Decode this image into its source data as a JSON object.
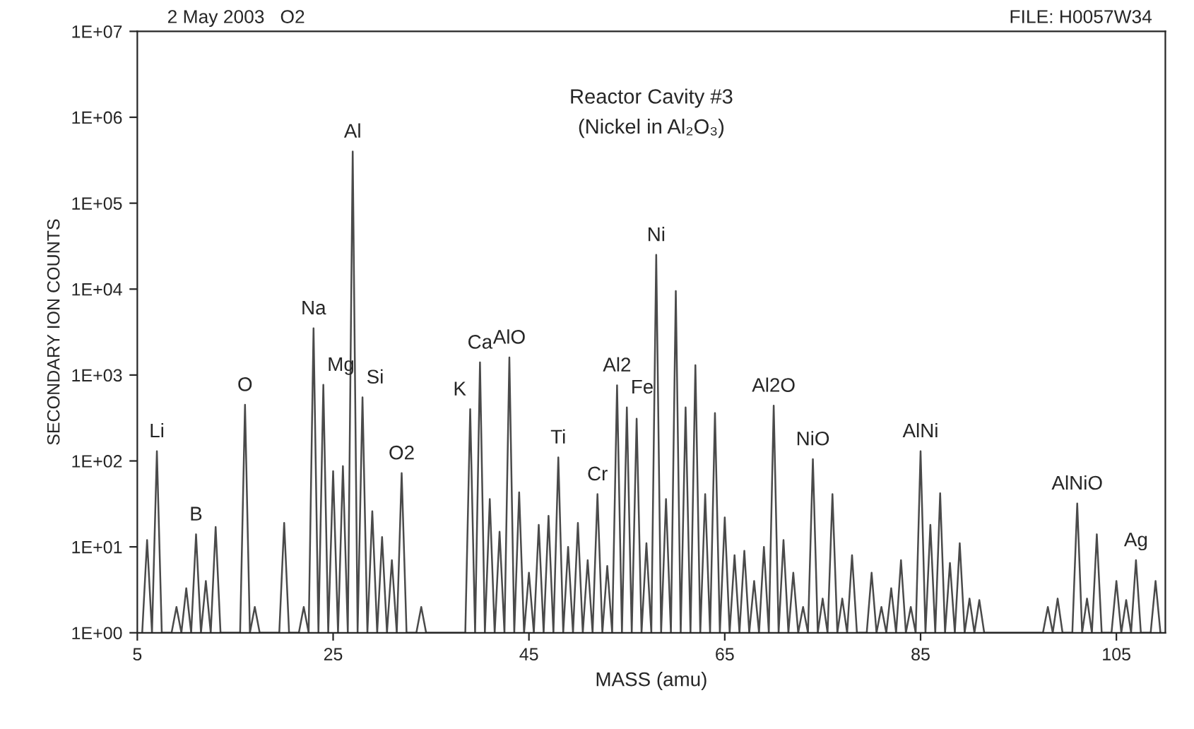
{
  "chart_data": {
    "type": "line",
    "title": "Reactor Cavity #3",
    "subtitle": "(Nickel in Al₂O₃)",
    "xlabel": "MASS (amu)",
    "ylabel": "SECONDARY ION COUNTS",
    "log": "y",
    "grid": false,
    "legend": false,
    "marker": "none",
    "line_style": "solid",
    "xlim": [
      5,
      110
    ],
    "xticks": [
      5,
      25,
      45,
      65,
      85,
      105
    ],
    "ylim": [
      1,
      10000000
    ],
    "yticks": [
      {
        "value": 1,
        "label": "1E+00"
      },
      {
        "value": 10,
        "label": "1E+01"
      },
      {
        "value": 100,
        "label": "1E+02"
      },
      {
        "value": 1000,
        "label": "1E+03"
      },
      {
        "value": 10000,
        "label": "1E+04"
      },
      {
        "value": 100000,
        "label": "1E+05"
      },
      {
        "value": 1000000,
        "label": "1E+06"
      },
      {
        "value": 10000000,
        "label": "1E+07"
      }
    ],
    "series": [
      {
        "color": "#4a4a4a",
        "x": [
          5.5,
          6,
          6.5,
          7,
          7.5,
          8.5,
          9,
          9.5,
          10,
          10.5,
          11,
          11.5,
          12,
          12.5,
          13,
          13.5,
          15.5,
          16,
          16.5,
          17,
          17.5,
          19.5,
          20,
          20.5,
          21.5,
          22,
          22.5,
          23,
          23.5,
          24,
          24.5,
          25,
          25.5,
          26,
          26.5,
          27,
          27.5,
          28,
          28.5,
          29,
          29.5,
          30,
          30.5,
          31,
          31.5,
          32,
          32.5,
          33.5,
          34,
          34.5,
          38.5,
          39,
          39.5,
          40,
          40.5,
          41,
          41.5,
          42,
          42.5,
          43,
          43.5,
          44,
          44.5,
          45,
          45.5,
          46,
          46.5,
          47,
          47.5,
          48,
          48.5,
          49,
          49.5,
          50,
          50.5,
          51,
          51.5,
          52,
          52.5,
          53,
          53.5,
          54,
          54.5,
          55,
          55.5,
          56,
          56.5,
          57,
          57.5,
          58,
          58.5,
          59,
          59.5,
          60,
          60.5,
          61,
          61.5,
          62,
          62.5,
          63,
          63.5,
          64,
          64.5,
          65,
          65.5,
          66,
          66.5,
          67,
          67.5,
          68,
          68.5,
          69,
          69.5,
          70,
          70.5,
          71,
          71.5,
          72,
          72.5,
          73,
          73.5,
          74,
          74.5,
          75,
          75.5,
          76,
          76.5,
          77,
          77.5,
          78,
          78.5,
          79.5,
          80,
          80.5,
          81,
          81.5,
          82,
          82.5,
          83,
          83.5,
          84,
          84.5,
          85,
          85.5,
          86,
          86.5,
          87,
          87.5,
          88,
          88.5,
          89,
          89.5,
          90,
          90.5,
          91,
          91.5,
          97.5,
          98,
          98.5,
          99,
          99.5,
          100.5,
          101,
          101.5,
          102,
          102.5,
          103,
          103.5,
          104.5,
          105,
          105.5,
          106,
          106.5,
          107,
          107.5,
          108.5,
          109,
          109.5
        ],
        "values": [
          1,
          12,
          1,
          130,
          1,
          1,
          2,
          1,
          3.3,
          1,
          14,
          1,
          4,
          1,
          17,
          1,
          1,
          450,
          1,
          2,
          1,
          1,
          19,
          1,
          1,
          2,
          1,
          3500,
          1,
          770,
          1,
          76,
          1,
          87,
          1,
          400000,
          1,
          550,
          1,
          26,
          1,
          13,
          1,
          7,
          1,
          72,
          1,
          1,
          2,
          1,
          1,
          400,
          1,
          1400,
          1,
          36,
          1,
          15,
          1,
          1600,
          1,
          43,
          1,
          5,
          1,
          18,
          1,
          23,
          1,
          110,
          1,
          10,
          1,
          19,
          1,
          7,
          1,
          41,
          1,
          6,
          1,
          760,
          1,
          420,
          1,
          310,
          1,
          11,
          1,
          25000,
          1,
          36,
          1,
          9500,
          1,
          420,
          1,
          1300,
          1,
          41,
          1,
          360,
          1,
          22,
          1,
          8,
          1,
          9,
          1,
          4,
          1,
          10,
          1,
          440,
          1,
          12,
          1,
          5,
          1,
          2,
          1,
          105,
          1,
          2.5,
          1,
          41,
          1,
          2.5,
          1,
          8,
          1,
          1,
          5,
          1,
          2,
          1,
          3.3,
          1,
          7,
          1,
          2,
          1,
          130,
          1,
          18,
          1,
          42,
          1,
          6.5,
          1,
          11,
          1,
          2.5,
          1,
          2.4,
          1,
          1,
          2,
          1,
          2.5,
          1,
          1,
          32,
          1,
          2.5,
          1,
          14,
          1,
          1,
          4,
          1,
          2.4,
          1,
          7,
          1,
          1,
          4,
          1
        ]
      }
    ],
    "annotations": [
      "2 May 2003   O2",
      "FILE: H0057W34",
      {
        "text": "Li",
        "x": 7,
        "y": 130
      },
      {
        "text": "B",
        "x": 11,
        "y": 14
      },
      {
        "text": "O",
        "x": 16,
        "y": 450
      },
      {
        "text": "Na",
        "x": 23,
        "y": 3500
      },
      {
        "text": "Mg",
        "x": 24,
        "y": 770
      },
      {
        "text": "Al",
        "x": 27,
        "y": 400000
      },
      {
        "text": "Si",
        "x": 28,
        "y": 550
      },
      {
        "text": "O2",
        "x": 32,
        "y": 72
      },
      {
        "text": "K",
        "x": 39,
        "y": 400
      },
      {
        "text": "Ca",
        "x": 40,
        "y": 1400
      },
      {
        "text": "AlO",
        "x": 43,
        "y": 1600
      },
      {
        "text": "Ti",
        "x": 48,
        "y": 110
      },
      {
        "text": "Cr",
        "x": 52,
        "y": 41
      },
      {
        "text": "Al2",
        "x": 54,
        "y": 760
      },
      {
        "text": "Fe",
        "x": 55,
        "y": 420
      },
      {
        "text": "Ni",
        "x": 58,
        "y": 25000
      },
      {
        "text": "Al2O",
        "x": 70,
        "y": 440
      },
      {
        "text": "NiO",
        "x": 74,
        "y": 105
      },
      {
        "text": "AlNi",
        "x": 85,
        "y": 130
      },
      {
        "text": "AlNiO",
        "x": 101,
        "y": 32
      },
      {
        "text": "Ag",
        "x": 107,
        "y": 7
      }
    ]
  }
}
